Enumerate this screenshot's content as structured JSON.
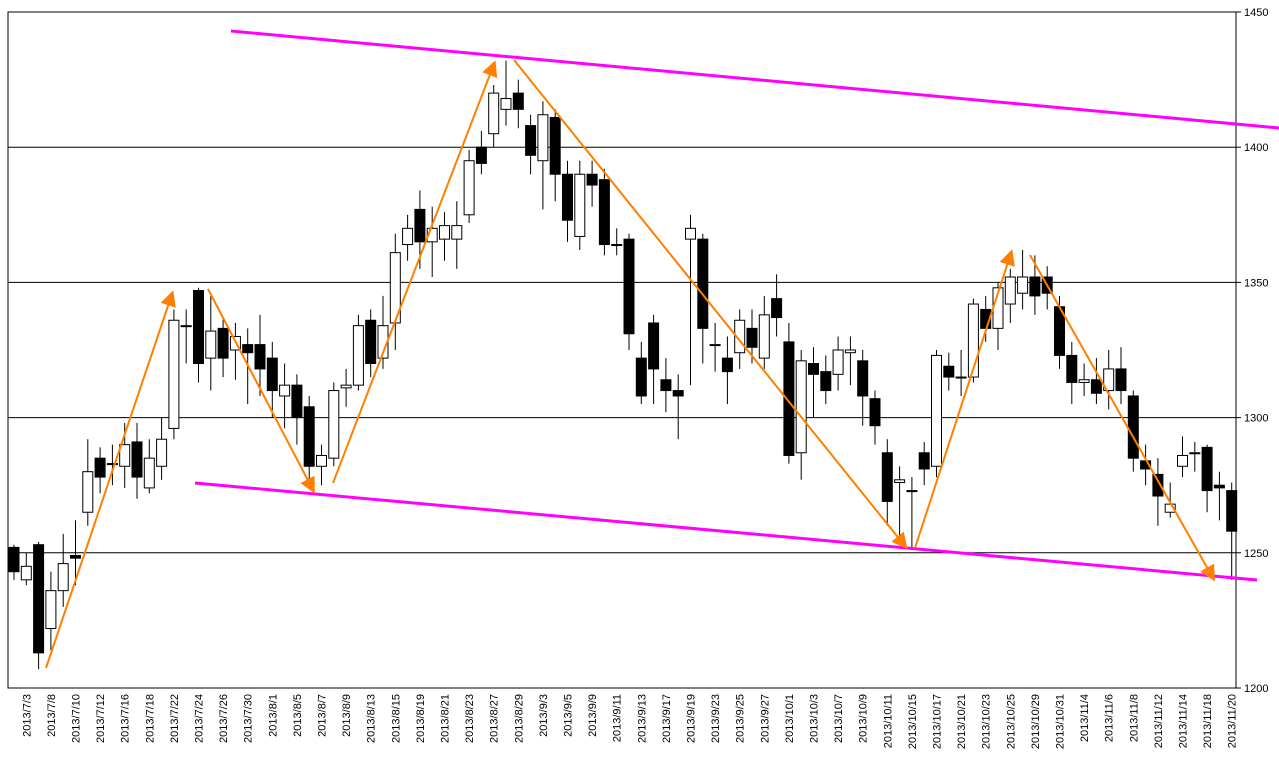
{
  "chart_data": {
    "type": "candlestick",
    "categories": [
      null,
      "2013/7/3",
      null,
      "2013/7/8",
      null,
      "2013/7/10",
      null,
      "2013/7/12",
      null,
      "2013/7/16",
      null,
      "2013/7/18",
      null,
      "2013/7/22",
      null,
      "2013/7/24",
      null,
      "2013/7/26",
      null,
      "2013/7/30",
      null,
      "2013/8/1",
      null,
      "2013/8/5",
      null,
      "2013/8/7",
      null,
      "2013/8/9",
      null,
      "2013/8/13",
      null,
      "2013/8/15",
      null,
      "2013/8/19",
      null,
      "2013/8/21",
      null,
      "2013/8/23",
      null,
      "2013/8/27",
      null,
      "2013/8/29",
      null,
      "2013/9/3",
      null,
      "2013/9/5",
      null,
      "2013/9/9",
      null,
      "2013/9/11",
      null,
      "2013/9/13",
      null,
      "2013/9/17",
      null,
      "2013/9/19",
      null,
      "2013/9/23",
      null,
      "2013/9/25",
      null,
      "2013/9/27",
      null,
      "2013/10/1",
      null,
      "2013/10/3",
      null,
      "2013/10/7",
      null,
      "2013/10/9",
      null,
      "2013/10/11",
      null,
      "2013/10/15",
      null,
      "2013/10/17",
      null,
      "2013/10/21",
      null,
      "2013/10/23",
      null,
      "2013/10/25",
      null,
      "2013/10/29",
      null,
      "2013/10/31",
      null,
      "2013/11/4",
      null,
      "2013/11/6",
      null,
      "2013/11/8",
      null,
      "2013/11/12",
      null,
      "2013/11/14",
      null,
      "2013/11/18",
      null,
      "2013/11/20"
    ],
    "open": [
      1252,
      1240,
      1253,
      1222,
      1236,
      1249,
      1265,
      1285,
      1283,
      1282,
      1291,
      1274,
      1282,
      1296,
      1334,
      1347,
      1322,
      1333,
      1325,
      1327,
      1327,
      1322,
      1308,
      1312,
      1304,
      1282,
      1285,
      1311,
      1312,
      1336,
      1322,
      1335,
      1364,
      1377,
      1365,
      1366,
      1366,
      1375,
      1400,
      1405,
      1414,
      1420,
      1408,
      1395,
      1411,
      1390,
      1367,
      1390,
      1388,
      1364,
      1366,
      1322,
      1335,
      1314,
      1310,
      1366,
      1366,
      1327,
      1322,
      1324,
      1333,
      1322,
      1344,
      1328,
      1287,
      1320,
      1317,
      1316,
      1324,
      1321,
      1307,
      1287,
      1276,
      1273,
      1287,
      1282,
      1319,
      1315,
      1315,
      1340,
      1333,
      1342,
      1346,
      1352,
      1352,
      1341,
      1323,
      1313,
      1314,
      1310,
      1318,
      1308,
      1284,
      1279,
      1265,
      1282,
      1287,
      1289,
      1275,
      1273
    ],
    "high": [
      1253,
      1250,
      1254,
      1243,
      1257,
      1262,
      1292,
      1289,
      1290,
      1298,
      1298,
      1292,
      1300,
      1340,
      1340,
      1348,
      1345,
      1337,
      1335,
      1333,
      1338,
      1328,
      1320,
      1316,
      1308,
      1290,
      1313,
      1318,
      1338,
      1340,
      1345,
      1368,
      1375,
      1384,
      1378,
      1376,
      1380,
      1399,
      1406,
      1423,
      1432,
      1425,
      1412,
      1417,
      1414,
      1395,
      1395,
      1395,
      1392,
      1370,
      1368,
      1328,
      1338,
      1322,
      1316,
      1375,
      1368,
      1335,
      1330,
      1340,
      1340,
      1345,
      1353,
      1335,
      1325,
      1326,
      1323,
      1330,
      1330,
      1325,
      1310,
      1292,
      1282,
      1278,
      1291,
      1325,
      1324,
      1325,
      1344,
      1345,
      1350,
      1355,
      1362,
      1360,
      1356,
      1345,
      1328,
      1320,
      1322,
      1325,
      1326,
      1310,
      1290,
      1285,
      1276,
      1293,
      1291,
      1290,
      1280,
      1276
    ],
    "low": [
      1240,
      1238,
      1207,
      1214,
      1230,
      1238,
      1260,
      1272,
      1275,
      1274,
      1270,
      1272,
      1277,
      1292,
      1320,
      1313,
      1310,
      1315,
      1314,
      1305,
      1308,
      1300,
      1296,
      1290,
      1275,
      1275,
      1282,
      1304,
      1310,
      1315,
      1318,
      1325,
      1358,
      1355,
      1352,
      1358,
      1355,
      1372,
      1390,
      1400,
      1408,
      1407,
      1390,
      1377,
      1380,
      1365,
      1362,
      1378,
      1360,
      1360,
      1325,
      1305,
      1305,
      1302,
      1292,
      1312,
      1320,
      1317,
      1305,
      1318,
      1320,
      1318,
      1330,
      1283,
      1277,
      1300,
      1305,
      1310,
      1312,
      1297,
      1290,
      1260,
      1255,
      1252,
      1275,
      1278,
      1310,
      1308,
      1313,
      1328,
      1325,
      1335,
      1340,
      1338,
      1340,
      1318,
      1305,
      1308,
      1305,
      1303,
      1305,
      1280,
      1275,
      1260,
      1263,
      1278,
      1280,
      1265,
      1262,
      1240
    ],
    "close": [
      1243,
      1245,
      1213,
      1236,
      1246,
      1248,
      1280,
      1278,
      1283,
      1290,
      1278,
      1285,
      1292,
      1336,
      1334,
      1320,
      1332,
      1322,
      1330,
      1324,
      1318,
      1310,
      1312,
      1300,
      1282,
      1286,
      1310,
      1312,
      1334,
      1320,
      1334,
      1361,
      1370,
      1365,
      1370,
      1371,
      1371,
      1395,
      1394,
      1420,
      1418,
      1414,
      1397,
      1412,
      1390,
      1373,
      1390,
      1386,
      1364,
      1364,
      1331,
      1308,
      1318,
      1310,
      1308,
      1370,
      1333,
      1327,
      1317,
      1336,
      1326,
      1338,
      1337,
      1286,
      1321,
      1316,
      1310,
      1325,
      1325,
      1308,
      1297,
      1269,
      1277,
      1273,
      1281,
      1323,
      1315,
      1315,
      1342,
      1333,
      1348,
      1352,
      1352,
      1345,
      1346,
      1323,
      1313,
      1314,
      1309,
      1318,
      1310,
      1285,
      1281,
      1271,
      1268,
      1286,
      1287,
      1273,
      1274,
      1258
    ],
    "up_color": "#ffffff",
    "down_color": "#000000",
    "ylim": [
      1200,
      1450
    ],
    "yticks": [
      1200,
      1250,
      1300,
      1350,
      1400,
      1450
    ],
    "grid": true
  }
}
